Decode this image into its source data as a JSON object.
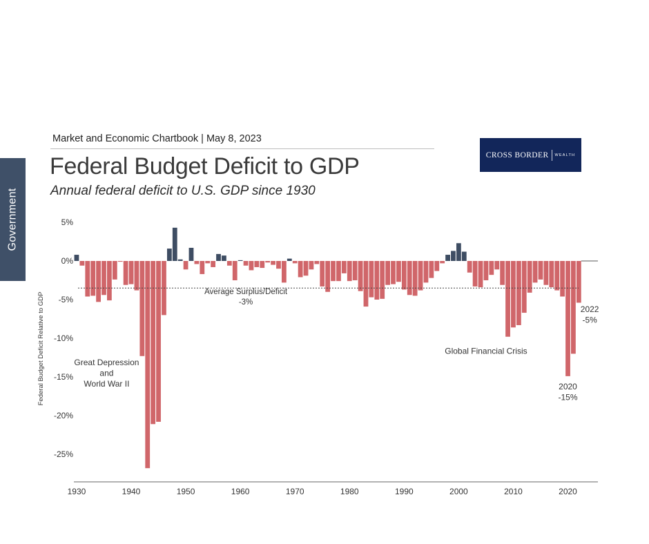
{
  "header": {
    "chartbook": "Market and Economic Chartbook | May 8, 2023",
    "title": "Federal Budget Deficit to GDP",
    "subtitle": "Annual federal deficit to U.S. GDP since 1930"
  },
  "side_tab": {
    "label": "Government"
  },
  "logo": {
    "name": "CROSS BORDER",
    "sub": "WEALTH",
    "bg_color": "#12265a"
  },
  "colors": {
    "deficit": "#d0666a",
    "surplus": "#3e4d63",
    "axis": "#555555",
    "average": "#444444"
  },
  "chart_data": {
    "type": "bar",
    "ylabel": "Federal Budget Deficit Relative to GDP",
    "xlabel": "",
    "ylim": [
      -28.5,
      6
    ],
    "xlim": [
      1929.5,
      2025.5
    ],
    "y_ticks": [
      5,
      0,
      -5,
      -10,
      -15,
      -20,
      -25
    ],
    "y_tick_labels": [
      "5%",
      "0%",
      "-5%",
      "-10%",
      "-15%",
      "-20%",
      "-25%"
    ],
    "x_ticks": [
      1930,
      1940,
      1950,
      1960,
      1970,
      1980,
      1990,
      2000,
      2010,
      2020
    ],
    "x_tick_labels": [
      "1930",
      "1940",
      "1950",
      "1960",
      "1970",
      "1980",
      "1990",
      "2000",
      "2010",
      "2020"
    ],
    "grid": false,
    "average": {
      "value": -3.5,
      "label_line1": "Average Surplus/Deficit",
      "label_line2": "-3%",
      "x_anchor": 1961,
      "y_anchor": -4.3
    },
    "annotations": [
      {
        "id": "great-depression",
        "lines": [
          "Great Depression",
          "and",
          "World War II"
        ],
        "x": 1935.5,
        "y": -13.5
      },
      {
        "id": "gfc",
        "lines": [
          "Global Financial Crisis"
        ],
        "x": 2005,
        "y": -12.0
      },
      {
        "id": "y2020",
        "lines": [
          "2020",
          "-15%"
        ],
        "x": 2020,
        "y": -16.6
      },
      {
        "id": "y2022",
        "lines": [
          "2022",
          "-5%"
        ],
        "x": 2024,
        "y": -6.6
      }
    ],
    "series": [
      {
        "x": [
          1930,
          1931,
          1932,
          1933,
          1934,
          1935,
          1936,
          1937,
          1938,
          1939,
          1940,
          1941,
          1942,
          1943,
          1944,
          1945,
          1946,
          1947,
          1948,
          1949,
          1950,
          1951,
          1952,
          1953,
          1954,
          1955,
          1956,
          1957,
          1958,
          1959,
          1960,
          1961,
          1962,
          1963,
          1964,
          1965,
          1966,
          1967,
          1968,
          1969,
          1970,
          1971,
          1972,
          1973,
          1974,
          1975,
          1976,
          1977,
          1978,
          1979,
          1980,
          1981,
          1982,
          1983,
          1984,
          1985,
          1986,
          1987,
          1988,
          1989,
          1990,
          1991,
          1992,
          1993,
          1994,
          1995,
          1996,
          1997,
          1998,
          1999,
          2000,
          2001,
          2002,
          2003,
          2004,
          2005,
          2006,
          2007,
          2008,
          2009,
          2010,
          2011,
          2012,
          2013,
          2014,
          2015,
          2016,
          2017,
          2018,
          2019,
          2020,
          2021,
          2022
        ],
        "values": [
          0.8,
          -0.6,
          -4.6,
          -4.5,
          -5.3,
          -4.4,
          -5.1,
          -2.4,
          -0.1,
          -3.1,
          -3.0,
          -3.8,
          -12.3,
          -26.8,
          -21.1,
          -20.8,
          -7.0,
          1.6,
          4.3,
          0.2,
          -1.1,
          1.7,
          -0.4,
          -1.7,
          -0.3,
          -0.8,
          0.9,
          0.7,
          -0.6,
          -2.5,
          0.1,
          -0.6,
          -1.2,
          -0.8,
          -0.9,
          -0.2,
          -0.5,
          -1.0,
          -2.8,
          0.3,
          -0.3,
          -2.1,
          -1.9,
          -1.1,
          -0.4,
          -3.3,
          -4.0,
          -2.6,
          -2.6,
          -1.6,
          -2.6,
          -2.5,
          -3.9,
          -5.9,
          -4.7,
          -5.0,
          -4.9,
          -3.1,
          -3.0,
          -2.7,
          -3.7,
          -4.4,
          -4.5,
          -3.8,
          -2.8,
          -2.2,
          -1.3,
          -0.3,
          0.8,
          1.3,
          2.3,
          1.2,
          -1.5,
          -3.3,
          -3.4,
          -2.5,
          -1.8,
          -1.1,
          -3.1,
          -9.8,
          -8.6,
          -8.3,
          -6.7,
          -4.1,
          -2.8,
          -2.4,
          -3.1,
          -3.4,
          -3.8,
          -4.6,
          -14.9,
          -12.0,
          -5.4
        ]
      }
    ]
  }
}
